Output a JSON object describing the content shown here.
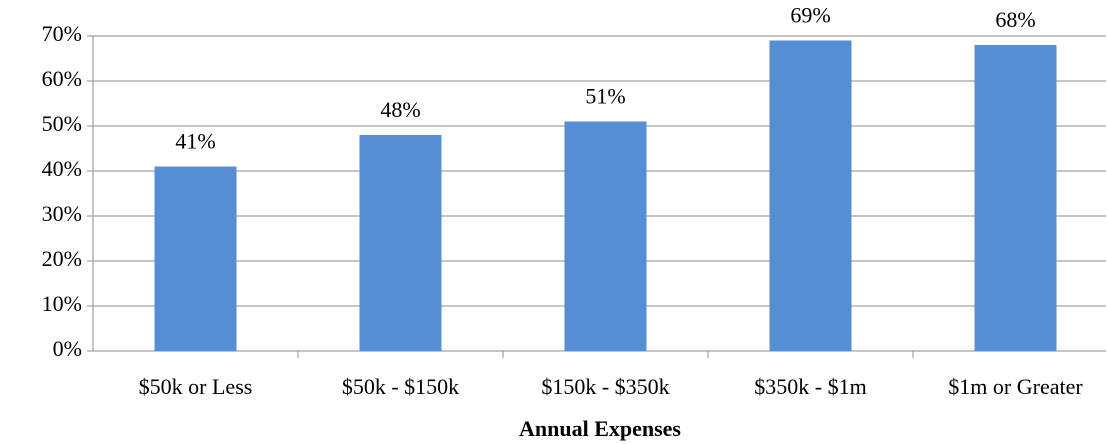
{
  "chart_data": {
    "type": "bar",
    "x_label": "Annual Expenses",
    "categories": [
      "$50k or Less",
      "$50k - $150k",
      "$150k - $350k",
      "$350k - $1m",
      "$1m or Greater"
    ],
    "values": [
      41,
      48,
      51,
      69,
      68
    ],
    "value_labels": [
      "41%",
      "48%",
      "51%",
      "69%",
      "68%"
    ],
    "color": "#558ed5",
    "ylim": [
      0,
      70
    ],
    "yticks": [
      {
        "value": 0,
        "label": "0%"
      },
      {
        "value": 10,
        "label": "10%"
      },
      {
        "value": 20,
        "label": "20%"
      },
      {
        "value": 30,
        "label": "30%"
      },
      {
        "value": 40,
        "label": "40%"
      },
      {
        "value": 50,
        "label": "50%"
      },
      {
        "value": 60,
        "label": "60%"
      },
      {
        "value": 70,
        "label": "70%"
      }
    ],
    "grid": true
  }
}
